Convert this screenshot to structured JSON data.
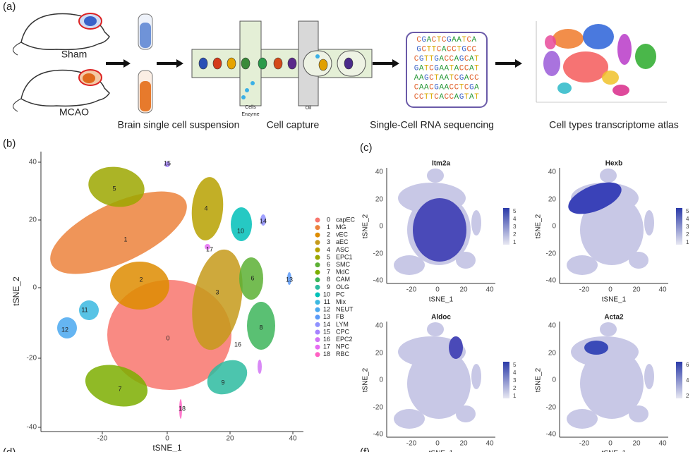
{
  "panel_a": {
    "label": "(a)",
    "steps": [
      "Sham",
      "MCAO",
      "Brain single cell suspension",
      "Cell capture",
      "Single-Cell RNA sequencing",
      "Cell types transcriptome atlas"
    ],
    "capture_labels": [
      "Cells",
      "Enzyme",
      "Oil"
    ],
    "sequences": [
      "CGACTCGAATCA",
      "GCTTCACCTGCC",
      "CGTTGACCAGCAT",
      "GATCGAATACCAT",
      "AAGCTAATCGACC",
      "CAACGAACCTCGA",
      "CCTTCACCAGTAT"
    ]
  },
  "panel_b": {
    "label": "(b)",
    "xlabel": "tSNE_1",
    "ylabel": "tSNE_2",
    "xticks": [
      "-20",
      "0",
      "20",
      "40"
    ],
    "yticks": [
      "40",
      "20",
      "0",
      "-20",
      "-40"
    ],
    "legend": [
      {
        "id": "0",
        "name": "capEC",
        "color": "#F8766D"
      },
      {
        "id": "1",
        "name": "MG",
        "color": "#EC823C"
      },
      {
        "id": "2",
        "name": "vEC",
        "color": "#DE8C00"
      },
      {
        "id": "3",
        "name": "aEC",
        "color": "#C59A1A"
      },
      {
        "id": "4",
        "name": "ASC",
        "color": "#B7A100"
      },
      {
        "id": "5",
        "name": "EPC1",
        "color": "#9CA700"
      },
      {
        "id": "6",
        "name": "SMC",
        "color": "#5CB034"
      },
      {
        "id": "7",
        "name": "MdC",
        "color": "#7CAE00"
      },
      {
        "id": "8",
        "name": "CAM",
        "color": "#3DB55A"
      },
      {
        "id": "9",
        "name": "OLG",
        "color": "#2DBBA0"
      },
      {
        "id": "10",
        "name": "PC",
        "color": "#00C0B8"
      },
      {
        "id": "11",
        "name": "Mix",
        "color": "#3BB8E0"
      },
      {
        "id": "12",
        "name": "NEUT",
        "color": "#4AA8F0"
      },
      {
        "id": "13",
        "name": "FB",
        "color": "#5A9AF8"
      },
      {
        "id": "14",
        "name": "LYM",
        "color": "#8F91FF"
      },
      {
        "id": "15",
        "name": "CPC",
        "color": "#A583FF"
      },
      {
        "id": "16",
        "name": "EPC2",
        "color": "#D274F5"
      },
      {
        "id": "17",
        "name": "NPC",
        "color": "#E76BF3"
      },
      {
        "id": "18",
        "name": "RBC",
        "color": "#FF61C3"
      }
    ]
  },
  "panel_c": {
    "label": "(c)",
    "xlabel": "tSNE_1",
    "ylabel": "tSNE_2",
    "xticks": [
      "-20",
      "0",
      "20",
      "40"
    ],
    "yticks": [
      "40",
      "20",
      "0",
      "-20",
      "-40"
    ],
    "plots": [
      {
        "title": "Itm2a",
        "scale": [
          "5",
          "4",
          "3",
          "2",
          "1"
        ]
      },
      {
        "title": "Hexb",
        "scale": [
          "5",
          "4",
          "3",
          "2",
          "1"
        ]
      },
      {
        "title": "Aldoc",
        "scale": [
          "5",
          "4",
          "3",
          "2",
          "1"
        ]
      },
      {
        "title": "Acta2",
        "scale": [
          "6",
          "4",
          "2"
        ]
      }
    ]
  },
  "panel_d": {
    "label": "(d)"
  },
  "panel_f": {
    "label": "(f)"
  }
}
